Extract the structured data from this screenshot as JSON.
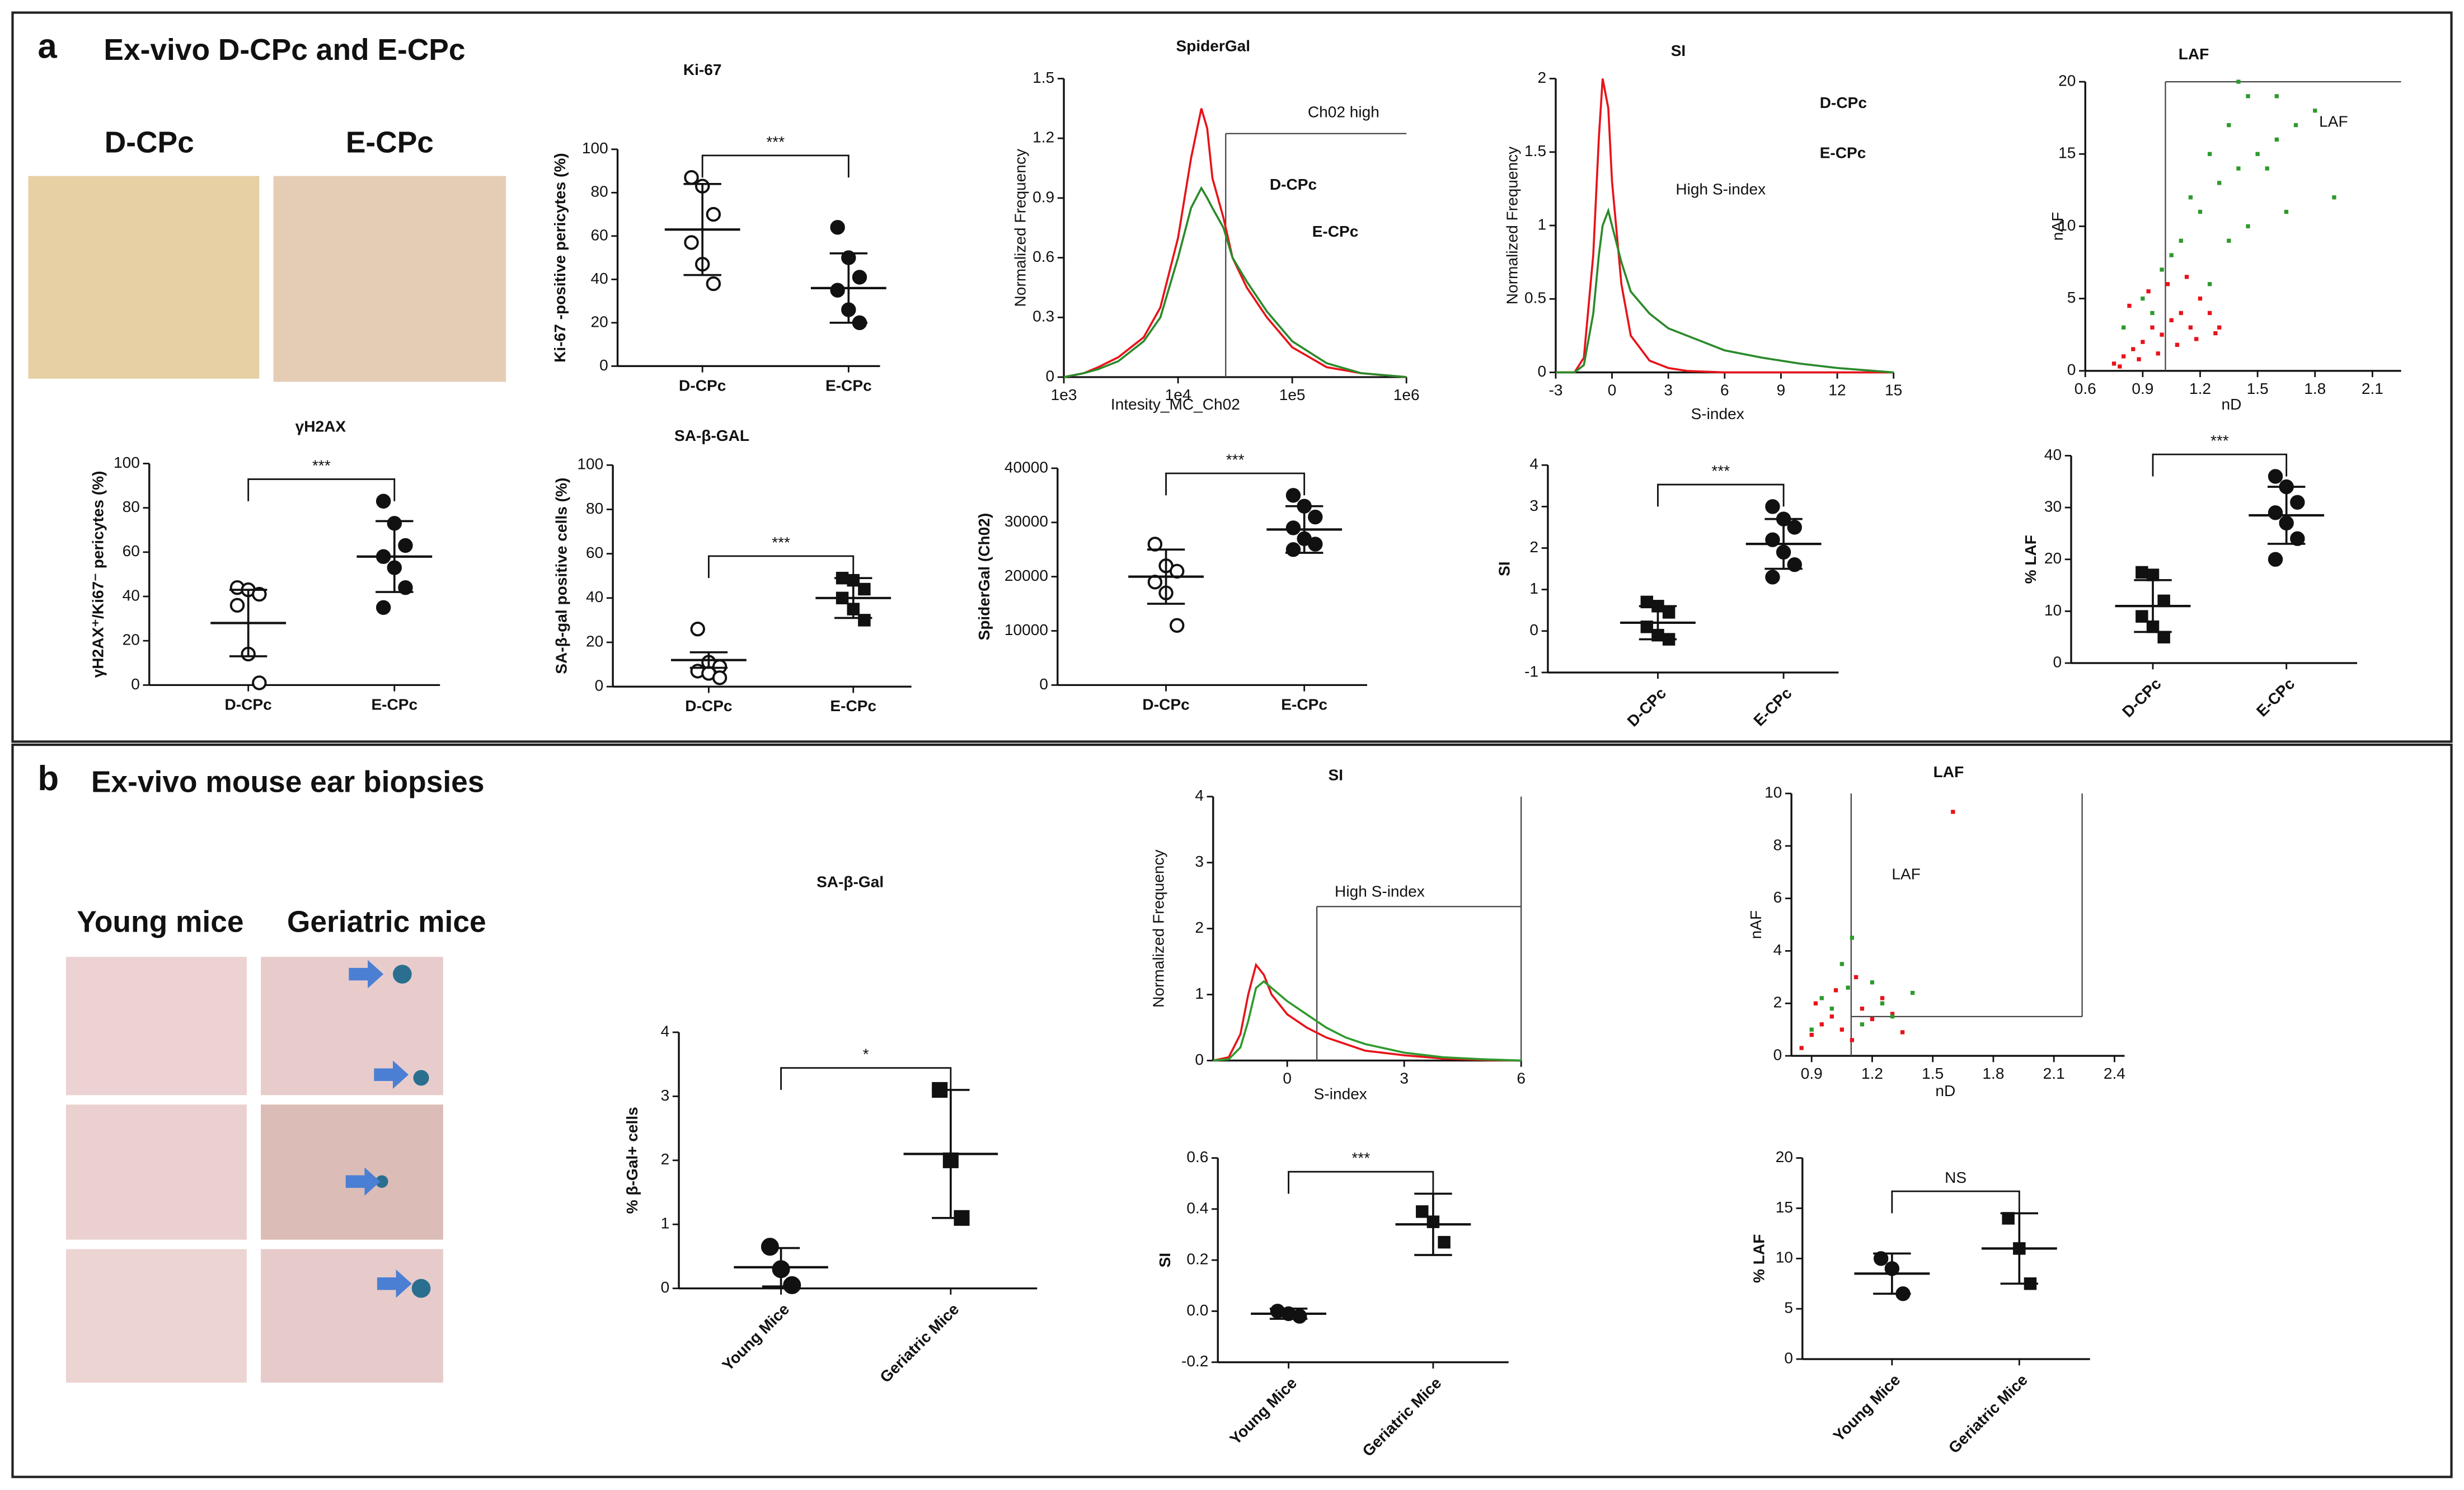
{
  "panel_a": {
    "label": "a",
    "title": "Ex-vivo D-CPc and E-CPc",
    "image_labels": [
      "D-CPc",
      "E-CPc"
    ]
  },
  "panel_b": {
    "label": "b",
    "title": "Ex-vivo mouse ear biopsies",
    "image_labels": [
      "Young mice",
      "Geriatric mice"
    ]
  },
  "chart_data": [
    {
      "type": "dot",
      "title": "Ki-67",
      "ylabel": "Ki-67 -positive pericytes (%)",
      "categories": [
        "D-CPc",
        "E-CPc"
      ],
      "points": [
        [
          87,
          83,
          70,
          57,
          47,
          38
        ],
        [
          64,
          50,
          41,
          35,
          26,
          20
        ]
      ],
      "means": [
        63,
        36
      ],
      "errors": [
        21,
        16
      ],
      "markers": [
        "open-circle",
        "filled-circle"
      ],
      "significance": "***",
      "ylim": [
        0,
        100
      ],
      "yticks": [
        0,
        20,
        40,
        60,
        80,
        100
      ]
    },
    {
      "type": "dot",
      "title": "γH2AX",
      "ylabel": "γH2AX⁺/Ki67⁻ pericytes (%)",
      "categories": [
        "D-CPc",
        "E-CPc"
      ],
      "points": [
        [
          44,
          43,
          41,
          36,
          14,
          1
        ],
        [
          83,
          73,
          63,
          58,
          53,
          44,
          35
        ]
      ],
      "means": [
        28,
        58
      ],
      "errors": [
        15,
        16
      ],
      "markers": [
        "open-circle",
        "filled-circle"
      ],
      "significance": "***",
      "ylim": [
        0,
        100
      ],
      "yticks": [
        0,
        20,
        40,
        60,
        80,
        100
      ]
    },
    {
      "type": "dot",
      "title": "SA-β-GAL",
      "ylabel": "SA-β-gal positive cells (%)",
      "categories": [
        "D-CPc",
        "E-CPc"
      ],
      "points": [
        [
          26,
          11,
          9,
          7,
          6,
          4
        ],
        [
          49,
          48,
          44,
          40,
          35,
          30
        ]
      ],
      "means": [
        12,
        40
      ],
      "errors": [
        3.5,
        9
      ],
      "markers": [
        "open-circle",
        "filled-square"
      ],
      "significance": "***",
      "ylim": [
        0,
        100
      ],
      "yticks": [
        0,
        20,
        40,
        60,
        80,
        100
      ]
    },
    {
      "type": "line",
      "title": "SpiderGal",
      "xlabel": "Intesity_MC_Ch02",
      "ylabel": "Normalized Frequency",
      "annotation": "Ch02 high",
      "log_x": true,
      "xlim": [
        1000,
        1000000
      ],
      "xticks": [
        {
          "value": 1000,
          "label": "1e3"
        },
        {
          "value": 10000,
          "label": "1e4"
        },
        {
          "value": 100000,
          "label": "1e5"
        },
        {
          "value": 1000000,
          "label": "1e6"
        }
      ],
      "ylim": [
        0,
        1.5
      ],
      "yticks": [
        0,
        0.3,
        0.6,
        0.9,
        1.2,
        1.5
      ],
      "x": [
        1000,
        1500,
        2000,
        3000,
        5000,
        7000,
        10000,
        13000,
        16000,
        18000,
        20000,
        25000,
        30000,
        40000,
        60000,
        100000,
        200000,
        400000,
        1000000
      ],
      "series": [
        {
          "name": "D-CPc",
          "color": "#e8131a",
          "values": [
            0,
            0.02,
            0.05,
            0.1,
            0.2,
            0.35,
            0.7,
            1.1,
            1.35,
            1.25,
            1.0,
            0.8,
            0.6,
            0.45,
            0.3,
            0.15,
            0.05,
            0.02,
            0
          ]
        },
        {
          "name": "E-CPc",
          "color": "#2a8a2a",
          "values": [
            0,
            0.02,
            0.04,
            0.08,
            0.18,
            0.3,
            0.6,
            0.85,
            0.95,
            0.9,
            0.85,
            0.75,
            0.6,
            0.48,
            0.33,
            0.18,
            0.07,
            0.02,
            0
          ]
        }
      ]
    },
    {
      "type": "dot",
      "ylabel": "SpiderGal (Ch02)",
      "categories": [
        "D-CPc",
        "E-CPc"
      ],
      "points": [
        [
          26000,
          22000,
          21000,
          19000,
          17000,
          11000
        ],
        [
          35000,
          33000,
          31000,
          29000,
          27000,
          26000,
          25000
        ]
      ],
      "means": [
        20000,
        28700
      ],
      "errors": [
        5000,
        4300
      ],
      "markers": [
        "open-circle",
        "filled-circle"
      ],
      "significance": "***",
      "ylim": [
        0,
        40000
      ],
      "yticks": [
        0,
        10000,
        20000,
        30000,
        40000
      ]
    },
    {
      "type": "line",
      "title": "SI",
      "xlabel": "S-index",
      "ylabel": "Normalized Frequency",
      "annotation": "High S-index",
      "xlim": [
        -3,
        15
      ],
      "xticks": [
        -3,
        0,
        3,
        6,
        9,
        12,
        15
      ],
      "ylim": [
        0,
        2
      ],
      "yticks": [
        0,
        0.5,
        1,
        1.5,
        2
      ],
      "x": [
        -3,
        -2,
        -1.5,
        -1,
        -0.7,
        -0.5,
        -0.2,
        0,
        0.5,
        1,
        2,
        3,
        4,
        6,
        8,
        10,
        12,
        15
      ],
      "series": [
        {
          "name": "D-CPc",
          "color": "#e8131a",
          "values": [
            0,
            0,
            0.1,
            0.8,
            1.6,
            2.0,
            1.8,
            1.3,
            0.6,
            0.25,
            0.08,
            0.03,
            0.01,
            0,
            0,
            0,
            0,
            0
          ]
        },
        {
          "name": "E-CPc",
          "color": "#2a8a2a",
          "values": [
            0,
            0,
            0.05,
            0.4,
            0.8,
            1.0,
            1.1,
            1.0,
            0.75,
            0.55,
            0.4,
            0.3,
            0.25,
            0.15,
            0.1,
            0.06,
            0.03,
            0
          ]
        }
      ]
    },
    {
      "type": "dot",
      "ylabel": "SI",
      "categories": [
        "D-CPc",
        "E-CPc"
      ],
      "points": [
        [
          0.7,
          0.6,
          0.45,
          0.1,
          -0.1,
          -0.2
        ],
        [
          3.0,
          2.7,
          2.5,
          2.2,
          1.9,
          1.6,
          1.3
        ]
      ],
      "means": [
        0.2,
        2.1
      ],
      "errors": [
        0.4,
        0.6
      ],
      "markers": [
        "filled-square",
        "filled-circle"
      ],
      "significance": "***",
      "ylim": [
        -1,
        4
      ],
      "yticks": [
        -1,
        0,
        1,
        2,
        3,
        4
      ]
    },
    {
      "type": "scatter",
      "title": "LAF",
      "xlabel": "nD",
      "ylabel": "nAF",
      "annotation": "LAF",
      "xlim": [
        0.6,
        2.25
      ],
      "xticks": [
        0.6,
        0.9,
        1.2,
        1.5,
        1.8,
        2.1
      ],
      "ylim": [
        0,
        20
      ],
      "yticks": [
        0,
        5,
        10,
        15,
        20
      ],
      "series": [
        {
          "color": "#e8131a",
          "x": [
            0.75,
            0.8,
            0.85,
            0.9,
            0.95,
            1.0,
            1.05,
            1.1,
            1.15,
            1.2,
            1.25,
            1.3,
            0.78,
            0.88,
            0.98,
            1.08,
            1.18,
            1.28,
            0.83,
            0.93,
            1.03,
            1.13
          ],
          "values": [
            0.5,
            1,
            1.5,
            2,
            3,
            2.5,
            3.5,
            4,
            3,
            5,
            4,
            3,
            0.3,
            0.8,
            1.2,
            1.8,
            2.2,
            2.6,
            4.5,
            5.5,
            6,
            6.5
          ]
        },
        {
          "color": "#2e9a2e",
          "x": [
            0.8,
            0.9,
            1.0,
            1.1,
            1.2,
            1.3,
            1.4,
            1.5,
            1.6,
            1.7,
            1.8,
            0.95,
            1.05,
            1.15,
            1.25,
            1.35,
            1.45,
            1.55,
            1.65,
            1.9,
            1.25,
            1.35,
            1.45,
            1.4,
            1.6
          ],
          "values": [
            3,
            5,
            7,
            9,
            11,
            13,
            14,
            15,
            16,
            17,
            18,
            4,
            8,
            12,
            15,
            17,
            19,
            14,
            11,
            12,
            6,
            9,
            10,
            20,
            19
          ]
        }
      ]
    },
    {
      "type": "dot",
      "ylabel": "% LAF",
      "categories": [
        "D-CPc",
        "E-CPc"
      ],
      "points": [
        [
          17.5,
          17,
          12,
          9,
          7,
          5
        ],
        [
          36,
          34,
          31,
          29,
          27,
          24,
          20
        ]
      ],
      "means": [
        11,
        28.5
      ],
      "errors": [
        5,
        5.5
      ],
      "markers": [
        "filled-square",
        "filled-circle"
      ],
      "significance": "***",
      "ylim": [
        0,
        40
      ],
      "yticks": [
        0,
        10,
        20,
        30,
        40
      ]
    },
    {
      "type": "dot",
      "title": "SA-β-Gal",
      "ylabel": "% β-Gal+ cells",
      "categories": [
        "Young Mice",
        "Geriatric Mice"
      ],
      "points": [
        [
          0.65,
          0.3,
          0.05
        ],
        [
          3.1,
          2.0,
          1.1
        ]
      ],
      "means": [
        0.33,
        2.1
      ],
      "errors": [
        0.3,
        1.0
      ],
      "markers": [
        "filled-circle",
        "filled-square"
      ],
      "significance": "*",
      "ylim": [
        0,
        4
      ],
      "yticks": [
        0,
        1,
        2,
        3,
        4
      ]
    },
    {
      "type": "line",
      "title": "SI",
      "xlabel": "S-index",
      "ylabel": "Normalized Frequency",
      "annotation": "High S-index",
      "xlim": [
        -1.9,
        6
      ],
      "xticks": [
        0,
        3,
        6
      ],
      "ylim": [
        0,
        4
      ],
      "yticks": [
        0,
        1,
        2,
        3,
        4
      ],
      "x": [
        -1.9,
        -1.5,
        -1.2,
        -1,
        -0.8,
        -0.6,
        -0.4,
        0,
        0.5,
        1,
        1.5,
        2,
        3,
        4,
        5,
        6
      ],
      "series": [
        {
          "color": "#e8131a",
          "values": [
            0,
            0.05,
            0.4,
            1.0,
            1.45,
            1.3,
            1.0,
            0.7,
            0.5,
            0.35,
            0.25,
            0.15,
            0.08,
            0.03,
            0.01,
            0
          ]
        },
        {
          "color": "#2e9a2e",
          "values": [
            0,
            0.02,
            0.2,
            0.6,
            1.1,
            1.2,
            1.1,
            0.9,
            0.7,
            0.5,
            0.35,
            0.25,
            0.12,
            0.05,
            0.02,
            0
          ]
        }
      ]
    },
    {
      "type": "dot",
      "ylabel": "SI",
      "categories": [
        "Young Mice",
        "Geriatric Mice"
      ],
      "points": [
        [
          0.0,
          -0.01,
          -0.02
        ],
        [
          0.39,
          0.35,
          0.27
        ]
      ],
      "means": [
        -0.01,
        0.34
      ],
      "errors": [
        0.02,
        0.12
      ],
      "markers": [
        "filled-circle",
        "filled-square"
      ],
      "significance": "***",
      "ylim": [
        -0.2,
        0.6
      ],
      "yticks": [
        -0.2,
        {
          "value": 0,
          "label": "0.0"
        },
        0.2,
        0.4,
        0.6
      ]
    },
    {
      "type": "scatter",
      "title": "LAF",
      "xlabel": "nD",
      "ylabel": "nAF",
      "annotation": "LAF",
      "xlim": [
        0.8,
        2.45
      ],
      "xticks": [
        0.9,
        1.2,
        1.5,
        1.8,
        2.1,
        2.4
      ],
      "ylim": [
        0,
        10
      ],
      "yticks": [
        0,
        2,
        4,
        6,
        8,
        10
      ],
      "series": [
        {
          "color": "#e8131a",
          "x": [
            0.85,
            0.9,
            0.95,
            1.0,
            1.05,
            1.1,
            1.15,
            1.2,
            1.25,
            1.3,
            1.35,
            0.92,
            1.02,
            1.12,
            1.6
          ],
          "values": [
            0.3,
            0.8,
            1.2,
            1.5,
            1.0,
            0.6,
            1.8,
            1.4,
            2.2,
            1.6,
            0.9,
            2.0,
            2.5,
            3.0,
            9.3
          ]
        },
        {
          "color": "#2e9a2e",
          "x": [
            0.9,
            1.0,
            1.05,
            1.1,
            1.15,
            1.2,
            1.25,
            1.3,
            1.4,
            0.95,
            1.08
          ],
          "values": [
            1.0,
            1.8,
            3.5,
            4.5,
            1.2,
            2.8,
            2.0,
            1.5,
            2.4,
            2.2,
            2.6
          ]
        }
      ]
    },
    {
      "type": "dot",
      "ylabel": "% LAF",
      "categories": [
        "Young Mice",
        "Geriatric Mice"
      ],
      "points": [
        [
          10,
          9,
          6.5
        ],
        [
          14,
          11,
          7.5
        ]
      ],
      "means": [
        8.5,
        11
      ],
      "errors": [
        2,
        3.5
      ],
      "markers": [
        "filled-circle",
        "filled-square"
      ],
      "significance": "NS",
      "ylim": [
        0,
        20
      ],
      "yticks": [
        0,
        5,
        10,
        15,
        20
      ]
    }
  ]
}
